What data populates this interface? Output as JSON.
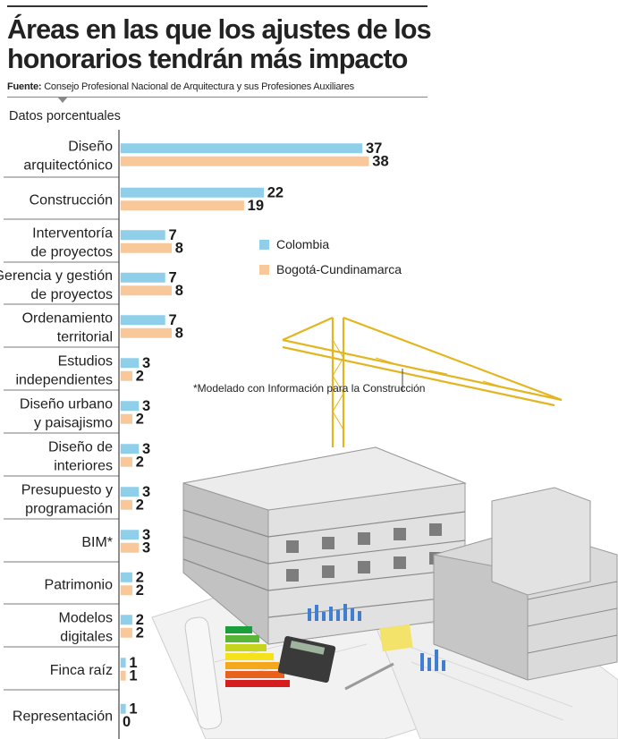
{
  "title": "Áreas en las que los ajustes de los honorarios tendrán más impacto",
  "source": {
    "label": "Fuente:",
    "text": "Consejo Profesional Nacional de Arquitectura y sus Profesiones Auxiliares"
  },
  "subtitle": "Datos porcentuales",
  "note": "*Modelado con Información para la Construcción",
  "colors": {
    "colombia": "#8fcfea",
    "bogota": "#f9c89a"
  },
  "chart_data": {
    "type": "bar",
    "orientation": "horizontal",
    "categories": [
      [
        "Diseño",
        "arquitectónico"
      ],
      [
        "Construcción"
      ],
      [
        "Interventoría",
        "de proyectos"
      ],
      [
        "Gerencia y gestión",
        "de proyectos"
      ],
      [
        "Ordenamiento",
        "territorial"
      ],
      [
        "Estudios",
        "independientes"
      ],
      [
        "Diseño urbano",
        "y paisajismo"
      ],
      [
        "Diseño de",
        "interiores"
      ],
      [
        "Presupuesto y",
        "programación"
      ],
      [
        "BIM*"
      ],
      [
        "Patrimonio"
      ],
      [
        "Modelos",
        "digitales"
      ],
      [
        "Finca raíz"
      ],
      [
        "Representación"
      ]
    ],
    "series": [
      {
        "name": "Colombia",
        "values": [
          37,
          22,
          7,
          7,
          7,
          3,
          3,
          3,
          3,
          3,
          2,
          2,
          1,
          1
        ]
      },
      {
        "name": "Bogotá-Cundinamarca",
        "values": [
          38,
          19,
          8,
          8,
          8,
          2,
          2,
          2,
          2,
          3,
          2,
          2,
          1,
          0
        ]
      }
    ],
    "legend": "right"
  }
}
